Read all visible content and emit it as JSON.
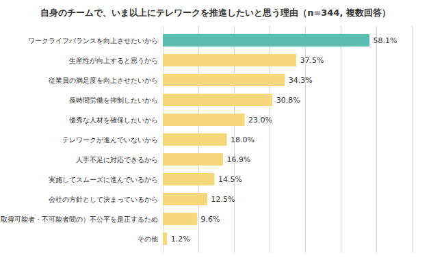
{
  "chart_data": {
    "type": "bar",
    "title": "自身のチームで、いま以上にテレワークを推進したいと思う理由（n=344, 複数回答）",
    "orientation": "horizontal",
    "categories": [
      "ワークライフバランスを向上させたいから",
      "生産性が向上すると思うから",
      "従業員の満足度を向上させたいから",
      "長時間労働を抑制したいから",
      "優秀な人材を確保したいから",
      "テレワークが進んでいないから",
      "人手不足に対応できるから",
      "実施してスムーズに進んでいるから",
      "会社の方針として決まっているから",
      "（取得可能者・不可能者間の）不公平を是正するため",
      "その他"
    ],
    "values": [
      58.1,
      37.5,
      34.3,
      30.8,
      23.0,
      18.0,
      16.9,
      14.5,
      12.5,
      9.6,
      1.2
    ],
    "value_labels": [
      "58.1%",
      "37.5%",
      "34.3%",
      "30.8%",
      "23.0%",
      "18.0%",
      "16.9%",
      "14.5%",
      "12.5%",
      "9.6%",
      "1.2%"
    ],
    "colors": [
      "#5bbcb1",
      "#f5d87a",
      "#f5d87a",
      "#f5d87a",
      "#f5d87a",
      "#f5d87a",
      "#f5d87a",
      "#f5d87a",
      "#f5d87a",
      "#f5d87a",
      "#f5d87a"
    ],
    "xlim": [
      0,
      70
    ],
    "xticks": [
      0,
      10,
      20,
      30,
      40,
      50,
      60,
      70
    ],
    "grid": true,
    "data_labels": true,
    "tick_labels": "y"
  }
}
